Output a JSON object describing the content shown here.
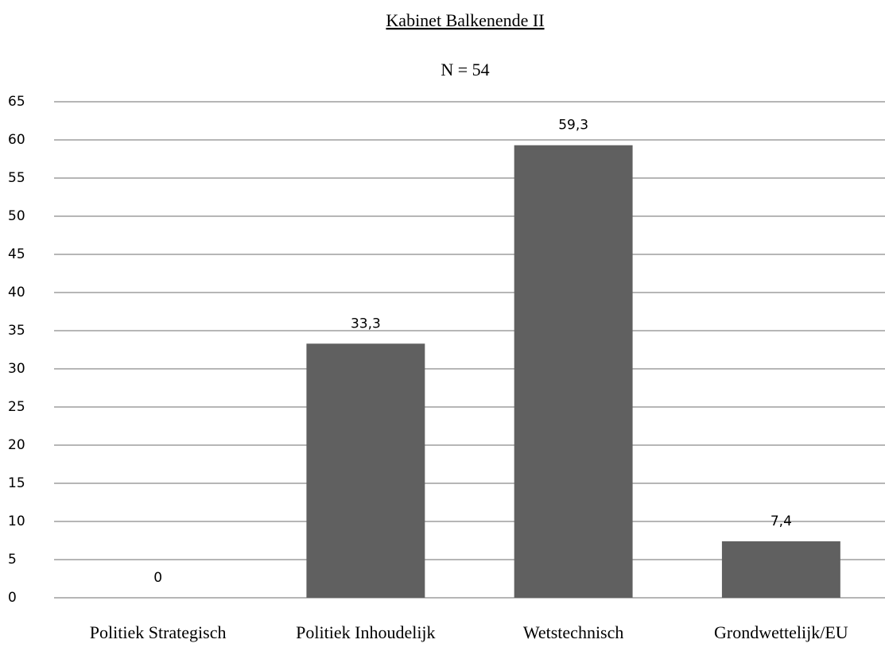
{
  "chart_data": {
    "type": "bar",
    "title": "Kabinet Balkenende II",
    "subtitle": "N = 54",
    "categories": [
      "Politiek Strategisch",
      "Politiek Inhoudelijk",
      "Wetstechnisch",
      "Grondwettelijk/EU"
    ],
    "values": [
      0,
      33.3,
      59.3,
      7.4
    ],
    "value_labels": [
      "0",
      "33,3",
      "59,3",
      "7,4"
    ],
    "color": "#606060",
    "ylim": [
      0,
      65
    ],
    "yticks": [
      0,
      5,
      10,
      15,
      20,
      25,
      30,
      35,
      40,
      45,
      50,
      55,
      60,
      65
    ],
    "grid": true
  }
}
